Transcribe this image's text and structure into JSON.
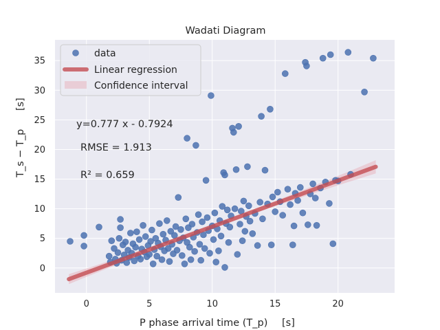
{
  "chart_data": {
    "type": "scatter",
    "title": "Wadati Diagram",
    "xlabel": "P phase arrival time (T_p)",
    "xlabel_unit": "[s]",
    "ylabel": "T_s − T_p",
    "ylabel_unit": "[s]",
    "xlim": [
      -2.5,
      24.5
    ],
    "ylim": [
      -4.2,
      38.5
    ],
    "xticks": [
      0,
      5,
      10,
      15,
      20
    ],
    "yticks": [
      0,
      5,
      10,
      15,
      20,
      25,
      30,
      35
    ],
    "grid": true,
    "legend_position": "top-left",
    "legend": {
      "data": "data",
      "regression": "Linear regression",
      "confidence": "Confidence interval"
    },
    "annotations": {
      "equation": "y=0.777 x - 0.7924",
      "rmse": "RMSE = 1.913",
      "r2": "R² = 0.659"
    },
    "regression": {
      "slope": 0.777,
      "intercept": -0.7924,
      "x_range": [
        -1.4,
        23
      ]
    },
    "colors": {
      "points": "#4c72b0",
      "regression_line": "#c44e52",
      "confidence": "#e8a3ac",
      "background": "#eaeaf2",
      "grid": "#ffffff"
    },
    "series": [
      {
        "name": "data",
        "points": [
          [
            -1.3,
            4.5
          ],
          [
            -0.2,
            3.7
          ],
          [
            -0.2,
            5.5
          ],
          [
            1.0,
            6.9
          ],
          [
            1.8,
            2.0
          ],
          [
            1.9,
            1.0
          ],
          [
            2.0,
            4.6
          ],
          [
            2.2,
            3.3
          ],
          [
            2.3,
            1.5
          ],
          [
            2.4,
            0.8
          ],
          [
            2.5,
            2.6
          ],
          [
            2.6,
            5.0
          ],
          [
            2.7,
            8.2
          ],
          [
            2.7,
            6.8
          ],
          [
            2.8,
            1.3
          ],
          [
            2.9,
            3.9
          ],
          [
            3.0,
            2.2
          ],
          [
            3.1,
            4.4
          ],
          [
            3.2,
            0.9
          ],
          [
            3.3,
            3.0
          ],
          [
            3.4,
            1.8
          ],
          [
            3.5,
            5.9
          ],
          [
            3.6,
            2.5
          ],
          [
            3.7,
            4.1
          ],
          [
            3.8,
            1.2
          ],
          [
            3.9,
            3.5
          ],
          [
            4.0,
            6.1
          ],
          [
            4.1,
            2.0
          ],
          [
            4.2,
            4.8
          ],
          [
            4.3,
            1.5
          ],
          [
            4.4,
            3.2
          ],
          [
            4.5,
            7.2
          ],
          [
            4.6,
            2.7
          ],
          [
            4.7,
            5.3
          ],
          [
            4.8,
            1.9
          ],
          [
            4.9,
            3.8
          ],
          [
            5.0,
            2.3
          ],
          [
            5.1,
            4.5
          ],
          [
            5.2,
            6.4
          ],
          [
            5.3,
            0.7
          ],
          [
            5.4,
            3.1
          ],
          [
            5.5,
            5.0
          ],
          [
            5.6,
            2.0
          ],
          [
            5.7,
            4.2
          ],
          [
            5.8,
            7.5
          ],
          [
            5.9,
            3.6
          ],
          [
            6.0,
            1.4
          ],
          [
            6.1,
            5.7
          ],
          [
            6.2,
            2.9
          ],
          [
            6.3,
            4.7
          ],
          [
            6.4,
            8.0
          ],
          [
            6.5,
            3.3
          ],
          [
            6.6,
            1.1
          ],
          [
            6.7,
            6.2
          ],
          [
            6.8,
            4.0
          ],
          [
            6.9,
            2.4
          ],
          [
            7.0,
            5.5
          ],
          [
            7.1,
            7.0
          ],
          [
            7.2,
            3.0
          ],
          [
            7.3,
            11.9
          ],
          [
            7.4,
            4.6
          ],
          [
            7.5,
            6.5
          ],
          [
            7.6,
            2.1
          ],
          [
            7.7,
            5.1
          ],
          [
            7.8,
            0.7
          ],
          [
            7.9,
            8.3
          ],
          [
            8.0,
            21.9
          ],
          [
            8.0,
            4.3
          ],
          [
            8.1,
            6.8
          ],
          [
            8.2,
            3.5
          ],
          [
            8.3,
            1.4
          ],
          [
            8.4,
            7.4
          ],
          [
            8.5,
            5.2
          ],
          [
            8.6,
            2.8
          ],
          [
            8.7,
            20.7
          ],
          [
            8.8,
            6.0
          ],
          [
            8.9,
            9.0
          ],
          [
            9.0,
            4.0
          ],
          [
            9.1,
            1.3
          ],
          [
            9.2,
            7.8
          ],
          [
            9.3,
            5.6
          ],
          [
            9.4,
            3.3
          ],
          [
            9.5,
            14.8
          ],
          [
            9.6,
            8.5
          ],
          [
            9.7,
            6.3
          ],
          [
            9.8,
            2.5
          ],
          [
            9.9,
            29.1
          ],
          [
            10.0,
            7.1
          ],
          [
            10.1,
            4.8
          ],
          [
            10.2,
            9.3
          ],
          [
            10.3,
            1.0
          ],
          [
            10.4,
            6.6
          ],
          [
            10.5,
            2.9
          ],
          [
            10.6,
            8.0
          ],
          [
            10.7,
            5.4
          ],
          [
            10.8,
            10.4
          ],
          [
            10.9,
            16.1
          ],
          [
            11.0,
            15.7
          ],
          [
            11.0,
            0.1
          ],
          [
            11.1,
            7.5
          ],
          [
            11.2,
            9.8
          ],
          [
            11.3,
            4.3
          ],
          [
            11.4,
            6.9
          ],
          [
            11.5,
            8.8
          ],
          [
            11.6,
            23.6
          ],
          [
            11.7,
            22.9
          ],
          [
            11.8,
            10.0
          ],
          [
            11.9,
            16.6
          ],
          [
            12.0,
            2.3
          ],
          [
            12.1,
            23.9
          ],
          [
            12.2,
            7.4
          ],
          [
            12.3,
            9.6
          ],
          [
            12.4,
            4.6
          ],
          [
            12.5,
            11.3
          ],
          [
            12.6,
            6.2
          ],
          [
            12.7,
            8.7
          ],
          [
            12.8,
            17.1
          ],
          [
            12.9,
            10.5
          ],
          [
            13.0,
            7.9
          ],
          [
            13.2,
            5.8
          ],
          [
            13.4,
            9.2
          ],
          [
            13.6,
            3.8
          ],
          [
            13.8,
            11.1
          ],
          [
            13.9,
            25.6
          ],
          [
            14.0,
            8.3
          ],
          [
            14.2,
            16.5
          ],
          [
            14.4,
            10.8
          ],
          [
            14.6,
            26.8
          ],
          [
            14.7,
            3.9
          ],
          [
            14.8,
            12.0
          ],
          [
            15.0,
            9.5
          ],
          [
            15.2,
            12.8
          ],
          [
            15.4,
            11.2
          ],
          [
            15.6,
            8.9
          ],
          [
            15.8,
            32.8
          ],
          [
            16.0,
            13.3
          ],
          [
            16.2,
            10.7
          ],
          [
            16.4,
            3.9
          ],
          [
            16.5,
            7.1
          ],
          [
            16.6,
            12.6
          ],
          [
            16.8,
            11.4
          ],
          [
            17.0,
            13.6
          ],
          [
            17.2,
            9.3
          ],
          [
            17.4,
            34.7
          ],
          [
            17.5,
            34.1
          ],
          [
            17.6,
            7.3
          ],
          [
            17.8,
            12.5
          ],
          [
            18.0,
            14.2
          ],
          [
            18.2,
            11.8
          ],
          [
            18.3,
            7.2
          ],
          [
            18.6,
            13.5
          ],
          [
            18.8,
            35.4
          ],
          [
            19.0,
            14.5
          ],
          [
            19.3,
            10.9
          ],
          [
            19.4,
            36.0
          ],
          [
            19.6,
            4.1
          ],
          [
            19.8,
            14.8
          ],
          [
            20.0,
            14.7
          ],
          [
            20.8,
            36.4
          ],
          [
            21.0,
            15.8
          ],
          [
            22.1,
            29.7
          ],
          [
            22.8,
            35.4
          ]
        ]
      }
    ]
  }
}
